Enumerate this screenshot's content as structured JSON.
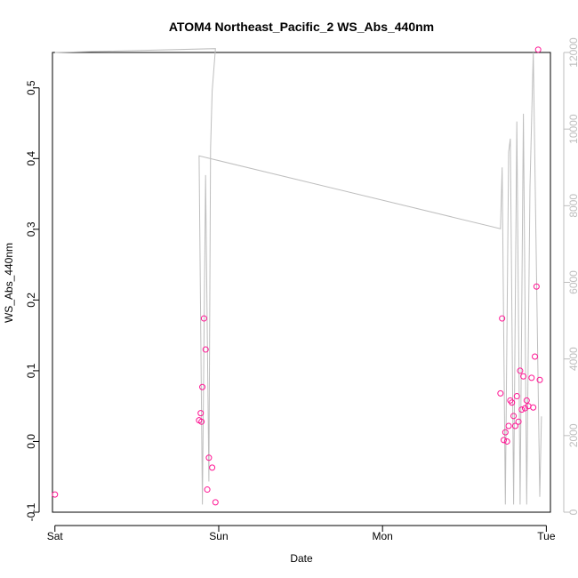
{
  "chart_data": {
    "type": "scatter",
    "title": "ATOM4 Northeast_Pacific_2 WS_Abs_440nm",
    "xlabel": "Date",
    "ylabel": "WS_Abs_440nm",
    "x_ticks": [
      "Sat",
      "Sun",
      "Mon",
      "Tue"
    ],
    "xlim": [
      -0.015,
      3.025
    ],
    "ylim": [
      -0.1,
      0.55
    ],
    "y_ticks": [
      -0.1,
      0.0,
      0.1,
      0.2,
      0.3,
      0.4,
      0.5
    ],
    "y2lim": [
      0,
      12000
    ],
    "y2_ticks": [
      0,
      2000,
      4000,
      6000,
      8000,
      10000,
      12000
    ],
    "grid": false,
    "colors": {
      "points": "#ff1493",
      "line": "#bebebe",
      "axes": "#000000",
      "right_axis": "#bebebe"
    },
    "series": [
      {
        "marker": "circle",
        "points": [
          [
            0.0,
            -0.075
          ],
          [
            0.88,
            0.03
          ],
          [
            0.89,
            0.04
          ],
          [
            0.895,
            0.028
          ],
          [
            0.9,
            0.077
          ],
          [
            0.91,
            0.174
          ],
          [
            0.92,
            0.13
          ],
          [
            0.93,
            -0.068
          ],
          [
            0.94,
            -0.023
          ],
          [
            0.96,
            -0.037
          ],
          [
            0.98,
            -0.086
          ],
          [
            2.72,
            0.068
          ],
          [
            2.73,
            0.174
          ],
          [
            2.74,
            0.002
          ],
          [
            2.75,
            0.013
          ],
          [
            2.76,
            0.0
          ],
          [
            2.77,
            0.022
          ],
          [
            2.78,
            0.058
          ],
          [
            2.79,
            0.055
          ],
          [
            2.8,
            0.036
          ],
          [
            2.81,
            0.022
          ],
          [
            2.82,
            0.064
          ],
          [
            2.83,
            0.028
          ],
          [
            2.84,
            0.1
          ],
          [
            2.85,
            0.045
          ],
          [
            2.86,
            0.092
          ],
          [
            2.87,
            0.047
          ],
          [
            2.88,
            0.058
          ],
          [
            2.89,
            0.05
          ],
          [
            2.91,
            0.09
          ],
          [
            2.92,
            0.048
          ],
          [
            2.93,
            0.12
          ],
          [
            2.94,
            0.219
          ],
          [
            2.95,
            0.554
          ],
          [
            2.96,
            0.087
          ]
        ]
      },
      {
        "axis": "right",
        "type": "line",
        "points": [
          [
            0.0,
            12000
          ],
          [
            0.98,
            12100
          ],
          [
            0.96,
            11000
          ],
          [
            0.95,
            9500
          ],
          [
            0.94,
            800
          ],
          [
            0.92,
            8800
          ],
          [
            0.9,
            200
          ],
          [
            0.88,
            9300
          ],
          [
            2.72,
            7400
          ],
          [
            2.73,
            9000
          ],
          [
            2.75,
            200
          ],
          [
            2.77,
            9400
          ],
          [
            2.78,
            9750
          ],
          [
            2.8,
            200
          ],
          [
            2.82,
            10200
          ],
          [
            2.84,
            200
          ],
          [
            2.86,
            10400
          ],
          [
            2.88,
            200
          ],
          [
            2.9,
            8500
          ],
          [
            2.92,
            12000
          ],
          [
            2.96,
            400
          ],
          [
            2.97,
            2500
          ]
        ]
      }
    ]
  }
}
